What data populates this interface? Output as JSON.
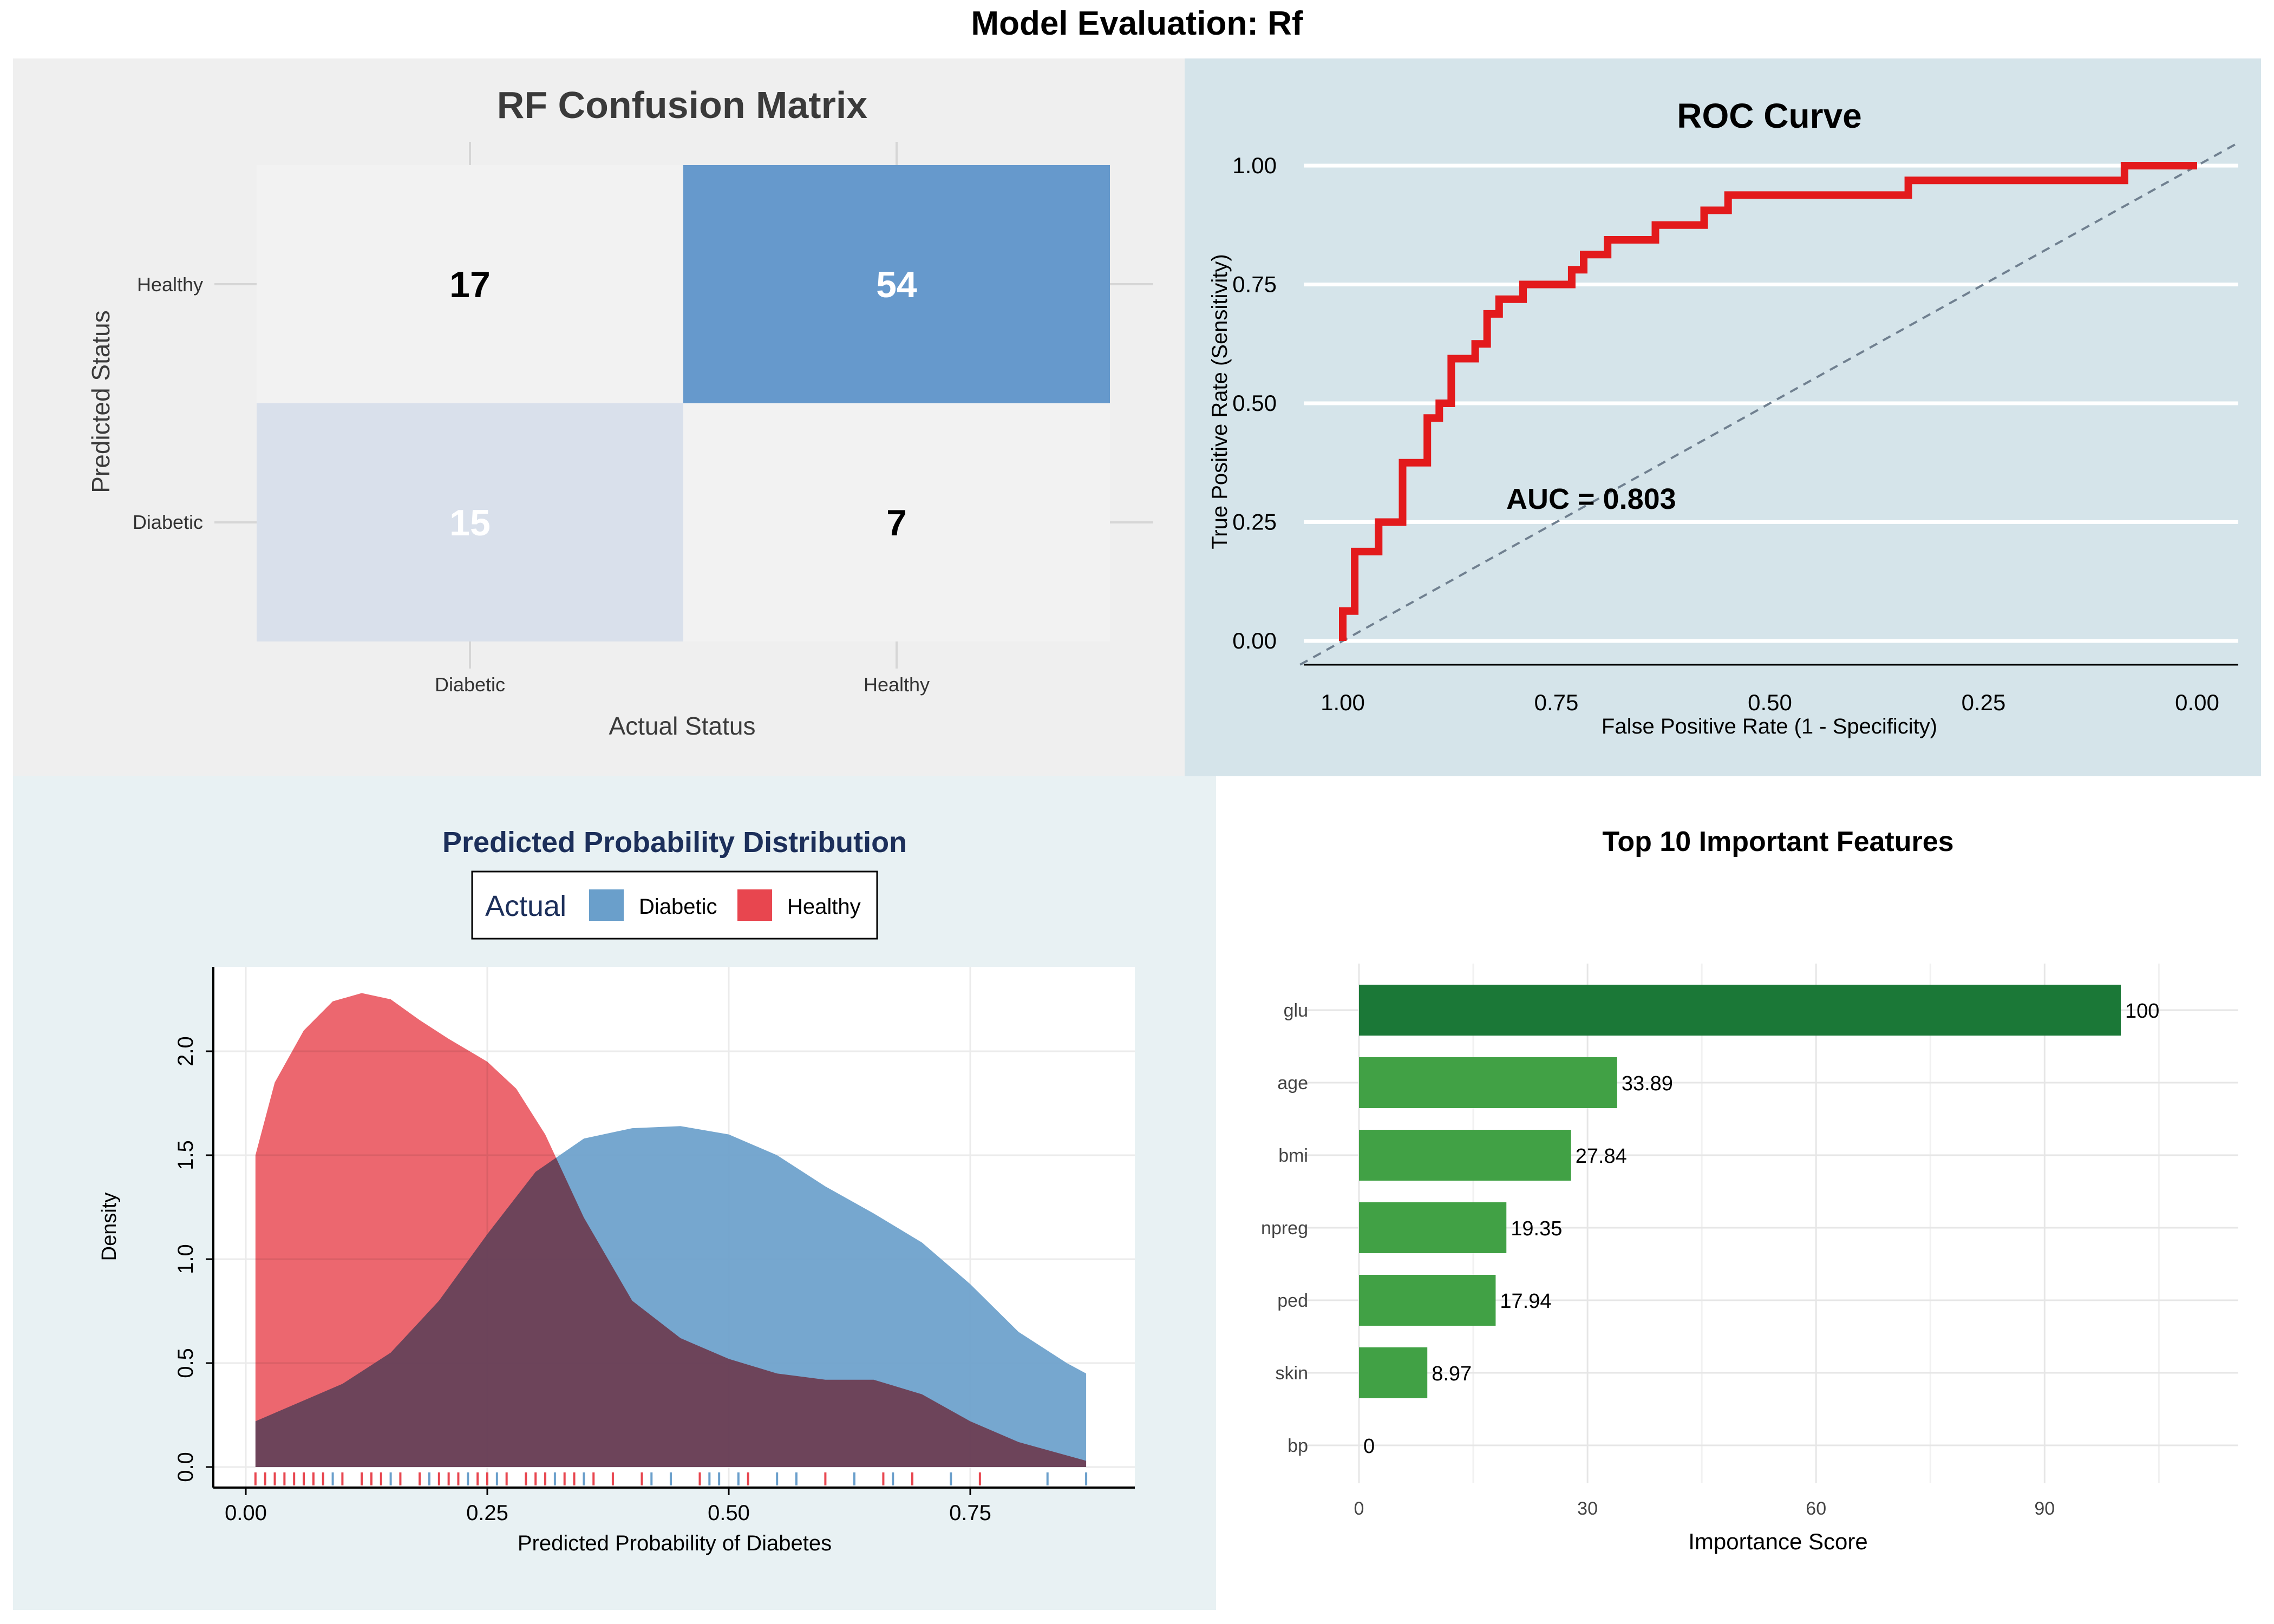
{
  "title": "Model Evaluation: Rf",
  "chart_data": [
    {
      "type": "heatmap",
      "title": "RF Confusion Matrix",
      "xlabel": "Actual Status",
      "ylabel": "Predicted Status",
      "x_categories": [
        "Diabetic",
        "Healthy"
      ],
      "y_categories": [
        "Healthy",
        "Diabetic"
      ],
      "cells": [
        {
          "actual": "Diabetic",
          "predicted": "Healthy",
          "value": 17
        },
        {
          "actual": "Healthy",
          "predicted": "Healthy",
          "value": 54
        },
        {
          "actual": "Diabetic",
          "predicted": "Diabetic",
          "value": 15
        },
        {
          "actual": "Healthy",
          "predicted": "Diabetic",
          "value": 7
        }
      ],
      "colors": {
        "panel_bg": "#efefef",
        "low": "#f2f2f2",
        "mid": "#d9e0eb",
        "high": "#6699cc"
      }
    },
    {
      "type": "line",
      "title": "ROC Curve",
      "xlabel": "False Positive Rate (1 - Specificity)",
      "ylabel": "True Positive Rate (Sensitivity)",
      "x_reversed": true,
      "xlim": [
        1.05,
        -0.05
      ],
      "ylim": [
        -0.05,
        1.05
      ],
      "x_ticks": [
        "1.00",
        "0.75",
        "0.50",
        "0.25",
        "0.00"
      ],
      "y_ticks": [
        "0.00",
        "0.25",
        "0.50",
        "0.75",
        "1.00"
      ],
      "annotation": "AUC = 0.803",
      "roc_points": [
        [
          1.0,
          0.0
        ],
        [
          1.0,
          0.063
        ],
        [
          0.986,
          0.063
        ],
        [
          0.986,
          0.188
        ],
        [
          0.958,
          0.188
        ],
        [
          0.958,
          0.25
        ],
        [
          0.93,
          0.25
        ],
        [
          0.93,
          0.375
        ],
        [
          0.901,
          0.375
        ],
        [
          0.901,
          0.469
        ],
        [
          0.887,
          0.469
        ],
        [
          0.887,
          0.5
        ],
        [
          0.873,
          0.5
        ],
        [
          0.873,
          0.594
        ],
        [
          0.845,
          0.594
        ],
        [
          0.845,
          0.625
        ],
        [
          0.831,
          0.625
        ],
        [
          0.831,
          0.688
        ],
        [
          0.817,
          0.688
        ],
        [
          0.817,
          0.719
        ],
        [
          0.789,
          0.719
        ],
        [
          0.789,
          0.75
        ],
        [
          0.732,
          0.75
        ],
        [
          0.732,
          0.781
        ],
        [
          0.718,
          0.781
        ],
        [
          0.718,
          0.813
        ],
        [
          0.69,
          0.813
        ],
        [
          0.69,
          0.844
        ],
        [
          0.634,
          0.844
        ],
        [
          0.634,
          0.875
        ],
        [
          0.577,
          0.875
        ],
        [
          0.577,
          0.906
        ],
        [
          0.549,
          0.906
        ],
        [
          0.549,
          0.938
        ],
        [
          0.338,
          0.938
        ],
        [
          0.338,
          0.969
        ],
        [
          0.085,
          0.969
        ],
        [
          0.085,
          1.0
        ],
        [
          0.0,
          1.0
        ]
      ],
      "colors": {
        "panel_bg": "#d5e4ea",
        "curve": "#e31a1c",
        "grid": "#ffffff",
        "diagonal": "#708090"
      }
    },
    {
      "type": "area",
      "title": "Predicted Probability Distribution",
      "xlabel": "Predicted Probability of Diabetes",
      "ylabel": "Density",
      "legend_title": "Actual",
      "legend_position": "top",
      "xlim": [
        -0.04,
        0.9
      ],
      "ylim": [
        -0.05,
        2.4
      ],
      "x_ticks": [
        "0.00",
        "0.25",
        "0.50",
        "0.75"
      ],
      "y_ticks": [
        "0.0",
        "0.5",
        "1.0",
        "1.5",
        "2.0"
      ],
      "series": [
        {
          "name": "Diabetic",
          "color": "#6a9fcb",
          "x": [
            0.01,
            0.05,
            0.1,
            0.15,
            0.2,
            0.25,
            0.3,
            0.35,
            0.4,
            0.45,
            0.5,
            0.55,
            0.6,
            0.65,
            0.7,
            0.75,
            0.8,
            0.85,
            0.87
          ],
          "y": [
            0.22,
            0.3,
            0.4,
            0.55,
            0.8,
            1.12,
            1.42,
            1.58,
            1.63,
            1.64,
            1.6,
            1.5,
            1.35,
            1.22,
            1.08,
            0.88,
            0.65,
            0.5,
            0.45
          ]
        },
        {
          "name": "Healthy",
          "color": "#e8464f",
          "x": [
            0.01,
            0.03,
            0.06,
            0.09,
            0.12,
            0.15,
            0.18,
            0.21,
            0.25,
            0.28,
            0.31,
            0.35,
            0.4,
            0.45,
            0.5,
            0.55,
            0.6,
            0.65,
            0.7,
            0.75,
            0.8,
            0.87
          ],
          "y": [
            1.5,
            1.85,
            2.1,
            2.24,
            2.28,
            2.25,
            2.15,
            2.06,
            1.95,
            1.82,
            1.6,
            1.2,
            0.8,
            0.62,
            0.52,
            0.45,
            0.42,
            0.42,
            0.35,
            0.22,
            0.12,
            0.03
          ]
        }
      ],
      "rug": {
        "Healthy": [
          0.01,
          0.02,
          0.03,
          0.04,
          0.05,
          0.06,
          0.07,
          0.08,
          0.1,
          0.12,
          0.13,
          0.14,
          0.16,
          0.18,
          0.2,
          0.21,
          0.22,
          0.24,
          0.25,
          0.27,
          0.29,
          0.3,
          0.31,
          0.33,
          0.34,
          0.36,
          0.38,
          0.41,
          0.47,
          0.52,
          0.6,
          0.66,
          0.69,
          0.76
        ],
        "Diabetic": [
          0.09,
          0.15,
          0.19,
          0.23,
          0.26,
          0.32,
          0.35,
          0.42,
          0.44,
          0.48,
          0.49,
          0.51,
          0.55,
          0.57,
          0.63,
          0.67,
          0.73,
          0.83,
          0.87
        ]
      },
      "overlap_color": "#c44050"
    },
    {
      "type": "bar",
      "title": "Top 10 Important Features",
      "xlabel": "Importance Score",
      "ylabel": "",
      "orientation": "horizontal",
      "xlim": [
        -5,
        115
      ],
      "x_ticks": [
        "0",
        "30",
        "60",
        "90"
      ],
      "categories": [
        "glu",
        "age",
        "bmi",
        "npreg",
        "ped",
        "skin",
        "bp"
      ],
      "values": [
        100,
        33.89,
        27.84,
        19.35,
        17.94,
        8.97,
        0
      ],
      "labels": [
        "100",
        "33.89",
        "27.84",
        "19.35",
        "17.94",
        "8.97",
        "0"
      ],
      "colors": {
        "top": "#1b7837",
        "rest": "#41a145"
      }
    }
  ]
}
